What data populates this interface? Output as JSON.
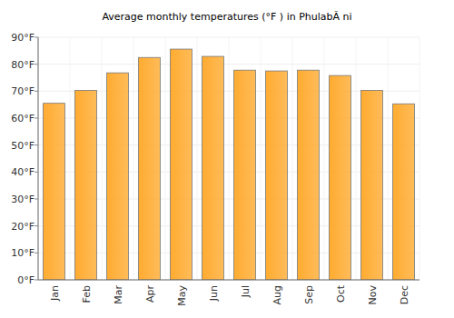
{
  "chart_data": {
    "type": "bar",
    "title": "Average monthly temperatures (°F ) in PhulabÃ ni",
    "categories": [
      "Jan",
      "Feb",
      "Mar",
      "Apr",
      "May",
      "Jun",
      "Jul",
      "Aug",
      "Sep",
      "Oct",
      "Nov",
      "Dec"
    ],
    "values": [
      65.5,
      70.3,
      76.8,
      82.5,
      85.6,
      82.9,
      77.8,
      77.5,
      77.8,
      75.8,
      70.3,
      65.3
    ],
    "color": "#ffab30",
    "ylim": [
      0,
      90
    ],
    "yticks": [
      {
        "value": 0,
        "label": "0°F"
      },
      {
        "value": 10,
        "label": "10°F"
      },
      {
        "value": 20,
        "label": "20°F"
      },
      {
        "value": 30,
        "label": "30°F"
      },
      {
        "value": 40,
        "label": "40°F"
      },
      {
        "value": 50,
        "label": "50°F"
      },
      {
        "value": 60,
        "label": "60°F"
      },
      {
        "value": 70,
        "label": "70°F"
      },
      {
        "value": 80,
        "label": "80°F"
      },
      {
        "value": 90,
        "label": "90°F"
      }
    ],
    "grid": true
  }
}
